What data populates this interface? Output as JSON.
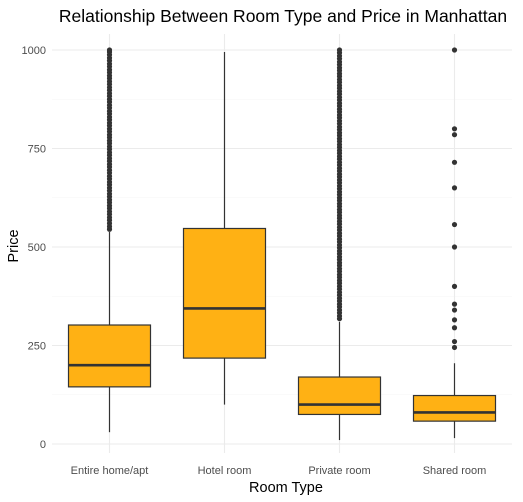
{
  "chart_data": {
    "type": "box",
    "title": "Relationship Between Room Type and Price in Manhattan",
    "xlabel": "Room Type",
    "ylabel": "Price",
    "ylim": [
      0,
      1000
    ],
    "yticks": [
      0,
      250,
      500,
      750,
      1000
    ],
    "grid": true,
    "fill_color": "#ffb114",
    "outline_color": "#333333",
    "categories": [
      "Entire home/apt",
      "Hotel room",
      "Private room",
      "Shared room"
    ],
    "boxes": [
      {
        "category": "Entire home/apt",
        "whisker_low": 30,
        "q1": 145,
        "median": 200,
        "q3": 302,
        "whisker_high": 538,
        "outliers": [
          545,
          552,
          560,
          568,
          575,
          583,
          590,
          598,
          605,
          613,
          620,
          628,
          635,
          643,
          650,
          658,
          665,
          673,
          680,
          688,
          695,
          703,
          710,
          718,
          725,
          733,
          740,
          748,
          755,
          763,
          770,
          778,
          785,
          793,
          800,
          808,
          815,
          823,
          830,
          838,
          845,
          853,
          860,
          868,
          875,
          883,
          890,
          898,
          905,
          913,
          920,
          928,
          935,
          943,
          950,
          958,
          965,
          973,
          980,
          988,
          995,
          1000
        ]
      },
      {
        "category": "Hotel room",
        "whisker_low": 100,
        "q1": 218,
        "median": 344,
        "q3": 547,
        "whisker_high": 995,
        "outliers": []
      },
      {
        "category": "Private room",
        "whisker_low": 10,
        "q1": 75,
        "median": 100,
        "q3": 170,
        "whisker_high": 310,
        "outliers": [
          318,
          325,
          333,
          340,
          348,
          355,
          363,
          370,
          378,
          385,
          393,
          400,
          408,
          415,
          423,
          430,
          438,
          445,
          453,
          460,
          468,
          475,
          483,
          490,
          498,
          505,
          513,
          520,
          528,
          535,
          543,
          550,
          558,
          565,
          573,
          580,
          588,
          595,
          603,
          610,
          618,
          625,
          633,
          640,
          648,
          655,
          663,
          670,
          678,
          685,
          693,
          700,
          708,
          715,
          723,
          730,
          738,
          745,
          753,
          760,
          768,
          775,
          783,
          790,
          798,
          805,
          813,
          820,
          828,
          835,
          843,
          850,
          858,
          865,
          873,
          880,
          888,
          895,
          903,
          910,
          918,
          925,
          933,
          940,
          948,
          955,
          963,
          970,
          978,
          985,
          993,
          1000
        ]
      },
      {
        "category": "Shared room",
        "whisker_low": 15,
        "q1": 58,
        "median": 80,
        "q3": 123,
        "whisker_high": 205,
        "outliers": [
          245,
          260,
          295,
          315,
          340,
          355,
          400,
          500,
          557,
          650,
          715,
          785,
          800,
          1000
        ]
      }
    ]
  }
}
